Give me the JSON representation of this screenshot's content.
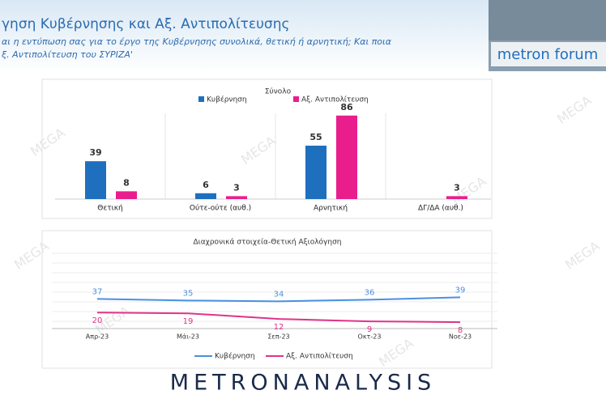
{
  "header": {
    "title": "γηση Κυβέρνησης και Αξ. Αντιπολίτευσης",
    "subtitle": [
      "αι η εντύπωση σας για το έργο της Κυβέρνησης συνολικά, θετική ή αρνητική; Και ποια",
      "ξ. Αντιπολίτευση του ΣΥΡΙΖΑ'"
    ]
  },
  "logo": "metron forum",
  "footer": "METRONANALYSIS",
  "watermark": "MEGA",
  "chart_data": [
    {
      "type": "bar",
      "title": "Σύνολο",
      "categories": [
        "Θετική",
        "Ούτε-ούτε (αυθ.)",
        "Αρνητική",
        "ΔΓ/ΔΑ (αυθ.)"
      ],
      "series": [
        {
          "name": "Κυβέρνηση",
          "color": "#1f6fbf",
          "values": [
            39,
            6,
            55,
            null
          ]
        },
        {
          "name": "Αξ. Αντιπολίτευση",
          "color": "#e91e8c",
          "values": [
            8,
            3,
            86,
            3
          ]
        }
      ],
      "ylim": [
        0,
        100
      ]
    },
    {
      "type": "line",
      "title": "Διαχρονικά στοιχεία-Θετική Αξιολόγηση",
      "categories": [
        "Απρ-23",
        "Μάι-23",
        "Σεπ-23",
        "Οκτ-23",
        "Νοε-23"
      ],
      "series": [
        {
          "name": "Κυβέρνηση",
          "color": "#4a90e2",
          "values": [
            37,
            35,
            34,
            36,
            39
          ]
        },
        {
          "name": "Αξ. Αντιπολίτευση",
          "color": "#e0338a",
          "values": [
            20,
            19,
            12,
            9,
            8
          ]
        }
      ],
      "ylim": [
        0,
        100
      ]
    }
  ]
}
